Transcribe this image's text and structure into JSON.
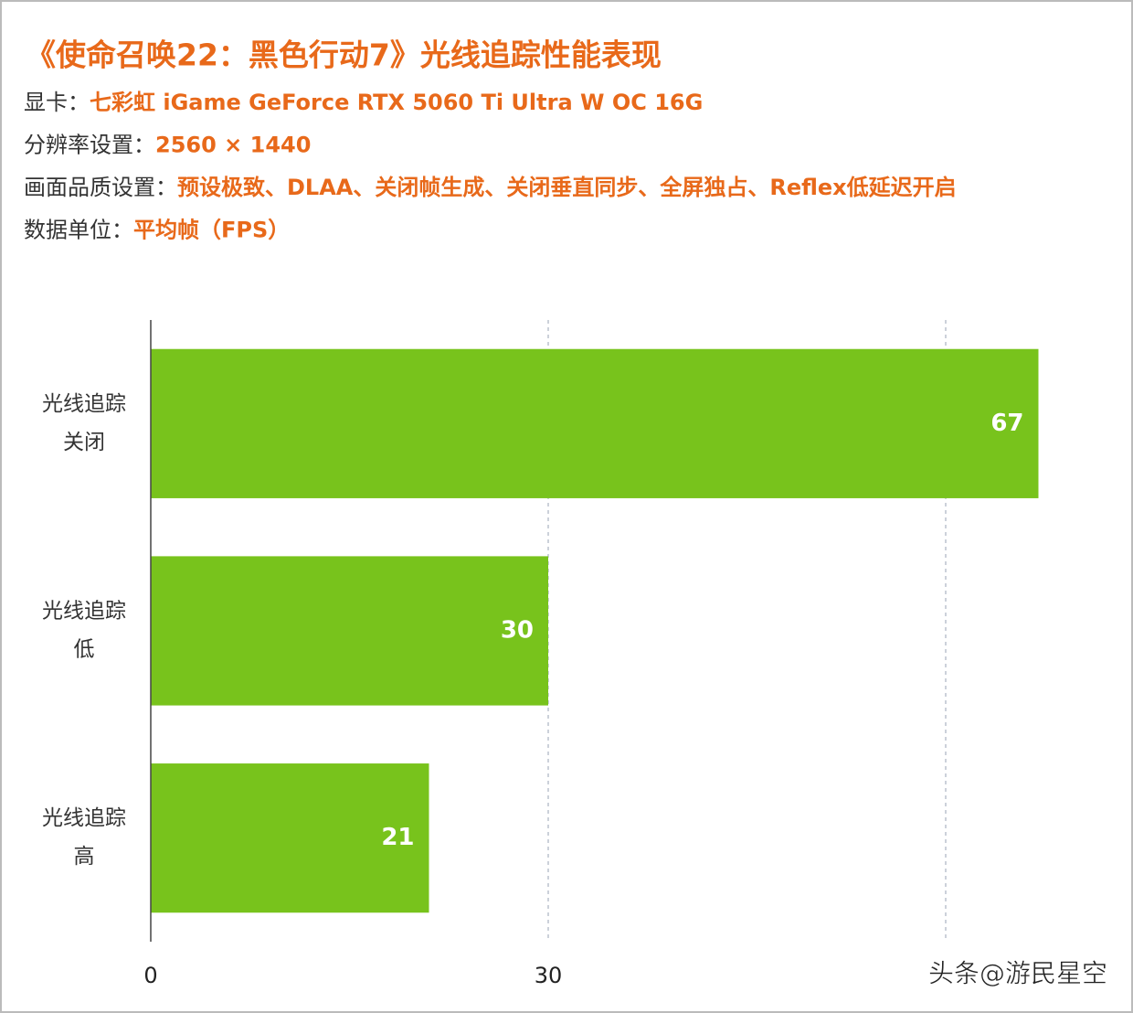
{
  "chart_data": {
    "type": "bar",
    "title": "《使命召唤22：黑色行动7》光线追踪性能表现",
    "info": [
      {
        "label": "显卡：",
        "value": "七彩虹 iGame GeForce RTX 5060 Ti Ultra W OC 16G"
      },
      {
        "label": "分辨率设置：",
        "value": "2560 × 1440"
      },
      {
        "label": "画面品质设置：",
        "value": "预设极致、DLAA、关闭帧生成、关闭垂直同步、全屏独占、Reflex低延迟开启"
      },
      {
        "label": "数据单位：",
        "value": "平均帧（FPS）"
      }
    ],
    "categories": [
      [
        "光线追踪",
        "关闭"
      ],
      [
        "光线追踪",
        "低"
      ],
      [
        "光线追踪",
        "高"
      ]
    ],
    "values": [
      67,
      30,
      21
    ],
    "color": "#78c31c",
    "xlim": [
      0,
      70
    ],
    "xticks": [
      0,
      30
    ],
    "grid": true,
    "watermark": "头条@游民星空"
  }
}
